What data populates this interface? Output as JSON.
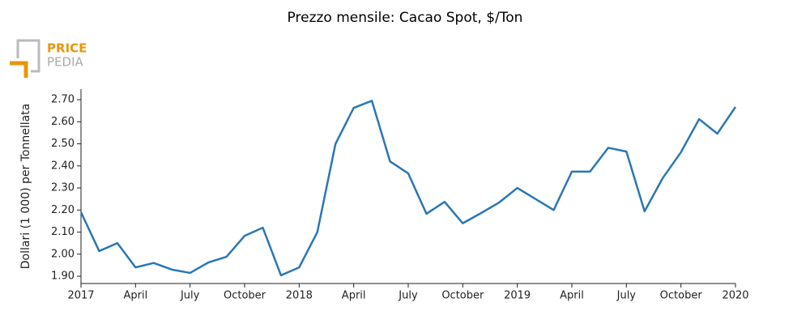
{
  "logo": {
    "top": "PRICE",
    "bottom": "PEDIA"
  },
  "chart_data": {
    "type": "line",
    "title": "Prezzo mensile: Cacao Spot, $/Ton",
    "ylabel": "Dollari (1 000) per Tonnellata",
    "x": [
      "2017-01",
      "2017-02",
      "2017-03",
      "2017-04",
      "2017-05",
      "2017-06",
      "2017-07",
      "2017-08",
      "2017-09",
      "2017-10",
      "2017-11",
      "2017-12",
      "2018-01",
      "2018-02",
      "2018-03",
      "2018-04",
      "2018-05",
      "2018-06",
      "2018-07",
      "2018-08",
      "2018-09",
      "2018-10",
      "2018-11",
      "2018-12",
      "2019-01",
      "2019-02",
      "2019-03",
      "2019-04",
      "2019-05",
      "2019-06",
      "2019-07",
      "2019-08",
      "2019-09",
      "2019-10",
      "2019-11",
      "2019-12",
      "2020-01"
    ],
    "series": [
      {
        "name": "Cacao Spot",
        "color": "#2a77b4",
        "values": [
          2.19,
          2.014,
          2.05,
          1.94,
          1.96,
          1.93,
          1.915,
          1.962,
          1.988,
          2.083,
          2.12,
          1.904,
          1.94,
          2.1,
          2.5,
          2.663,
          2.695,
          2.42,
          2.366,
          2.183,
          2.237,
          2.14,
          2.186,
          2.234,
          2.3,
          2.25,
          2.2,
          2.374,
          2.374,
          2.482,
          2.465,
          2.194,
          2.345,
          2.462,
          2.612,
          2.546,
          2.667
        ]
      }
    ],
    "xlim": [
      "2017-01",
      "2020-01"
    ],
    "xticks": [
      {
        "value": "2017-01",
        "label": "2017"
      },
      {
        "value": "2017-04",
        "label": "April"
      },
      {
        "value": "2017-07",
        "label": "July"
      },
      {
        "value": "2017-10",
        "label": "October"
      },
      {
        "value": "2018-01",
        "label": "2018"
      },
      {
        "value": "2018-04",
        "label": "April"
      },
      {
        "value": "2018-07",
        "label": "July"
      },
      {
        "value": "2018-10",
        "label": "October"
      },
      {
        "value": "2019-01",
        "label": "2019"
      },
      {
        "value": "2019-04",
        "label": "April"
      },
      {
        "value": "2019-07",
        "label": "July"
      },
      {
        "value": "2019-10",
        "label": "October"
      },
      {
        "value": "2020-01",
        "label": "2020"
      }
    ],
    "ylim": [
      1.867,
      2.748
    ],
    "yticks": [
      {
        "value": 1.9,
        "label": "1.90"
      },
      {
        "value": 2.0,
        "label": "2.00"
      },
      {
        "value": 2.1,
        "label": "2.10"
      },
      {
        "value": 2.2,
        "label": "2.20"
      },
      {
        "value": 2.3,
        "label": "2.30"
      },
      {
        "value": 2.4,
        "label": "2.40"
      },
      {
        "value": 2.5,
        "label": "2.50"
      },
      {
        "value": 2.6,
        "label": "2.60"
      },
      {
        "value": 2.7,
        "label": "2.70"
      }
    ]
  }
}
